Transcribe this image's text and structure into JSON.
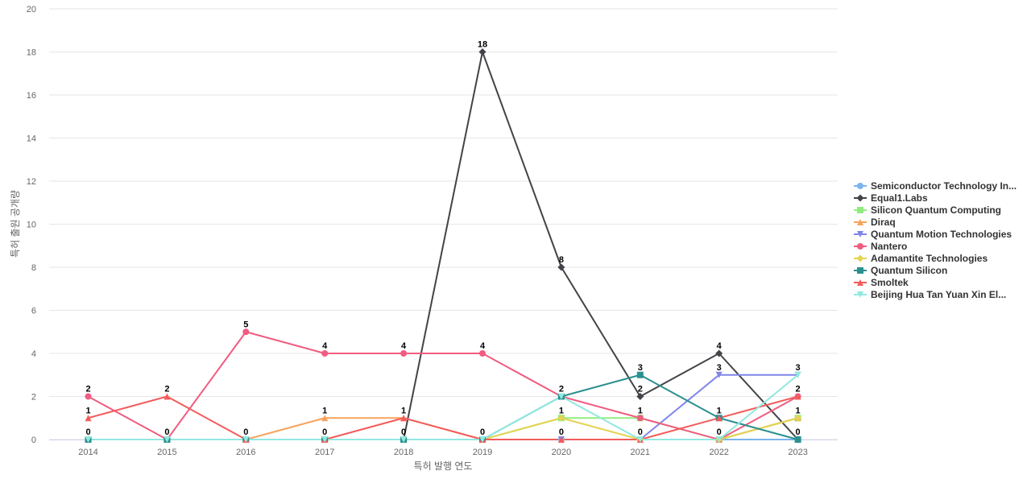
{
  "chart_data": {
    "type": "line",
    "title": "",
    "xlabel": "특허 발행 연도",
    "ylabel": "특허 출원 공개량",
    "categories": [
      "2014",
      "2015",
      "2016",
      "2017",
      "2018",
      "2019",
      "2020",
      "2021",
      "2022",
      "2023"
    ],
    "ylim": [
      0,
      20
    ],
    "yticks": [
      0,
      2,
      4,
      6,
      8,
      10,
      12,
      14,
      16,
      18,
      20
    ],
    "grid": true,
    "legend_position": "right",
    "series": [
      {
        "name": "Semiconductor Technology In...",
        "color": "#7cb5ec",
        "marker": "circle",
        "values": [
          0,
          0,
          0,
          0,
          0,
          0,
          0,
          0,
          0,
          0
        ]
      },
      {
        "name": "Equal1.Labs",
        "color": "#434348",
        "marker": "diamond",
        "values": [
          0,
          0,
          0,
          0,
          0,
          18,
          8,
          2,
          4,
          0
        ]
      },
      {
        "name": "Silicon Quantum Computing",
        "color": "#90ed7d",
        "marker": "square",
        "values": [
          0,
          0,
          0,
          0,
          0,
          0,
          1,
          1,
          0,
          1
        ]
      },
      {
        "name": "Diraq",
        "color": "#f7a35c",
        "marker": "triangle",
        "values": [
          0,
          0,
          0,
          1,
          1,
          0,
          0,
          0,
          0,
          1
        ]
      },
      {
        "name": "Quantum Motion Technologies",
        "color": "#8085e9",
        "marker": "triangle-down",
        "values": [
          0,
          0,
          0,
          0,
          0,
          0,
          0,
          0,
          3,
          3
        ]
      },
      {
        "name": "Nantero",
        "color": "#f15c80",
        "marker": "circle",
        "values": [
          2,
          0,
          5,
          4,
          4,
          4,
          2,
          1,
          0,
          2
        ]
      },
      {
        "name": "Adamantite Technologies",
        "color": "#e4d354",
        "marker": "diamond",
        "values": [
          0,
          0,
          0,
          0,
          0,
          0,
          1,
          0,
          0,
          1
        ]
      },
      {
        "name": "Quantum Silicon",
        "color": "#2b908f",
        "marker": "square",
        "values": [
          0,
          0,
          0,
          0,
          0,
          0,
          2,
          3,
          1,
          0
        ]
      },
      {
        "name": "Smoltek",
        "color": "#f45b5b",
        "marker": "triangle",
        "values": [
          1,
          2,
          0,
          0,
          1,
          0,
          0,
          0,
          1,
          2
        ]
      },
      {
        "name": "Beijing Hua Tan Yuan Xin El...",
        "color": "#91e8e1",
        "marker": "triangle-down",
        "values": [
          0,
          0,
          0,
          0,
          0,
          0,
          2,
          0,
          0,
          3
        ]
      }
    ],
    "data_labels": [
      {
        "category": "2014",
        "value": 2,
        "text": "2"
      },
      {
        "category": "2014",
        "value": 1,
        "text": "1"
      },
      {
        "category": "2014",
        "value": 0,
        "text": "0"
      },
      {
        "category": "2015",
        "value": 2,
        "text": "2"
      },
      {
        "category": "2015",
        "value": 0,
        "text": "0"
      },
      {
        "category": "2016",
        "value": 5,
        "text": "5"
      },
      {
        "category": "2016",
        "value": 0,
        "text": "0"
      },
      {
        "category": "2017",
        "value": 4,
        "text": "4"
      },
      {
        "category": "2017",
        "value": 1,
        "text": "1"
      },
      {
        "category": "2017",
        "value": 0,
        "text": "0"
      },
      {
        "category": "2018",
        "value": 4,
        "text": "4"
      },
      {
        "category": "2018",
        "value": 1,
        "text": "1"
      },
      {
        "category": "2018",
        "value": 0,
        "text": "0"
      },
      {
        "category": "2019",
        "value": 18,
        "text": "18"
      },
      {
        "category": "2019",
        "value": 4,
        "text": "4"
      },
      {
        "category": "2019",
        "value": 0,
        "text": "0"
      },
      {
        "category": "2020",
        "value": 8,
        "text": "8"
      },
      {
        "category": "2020",
        "value": 2,
        "text": "2"
      },
      {
        "category": "2020",
        "value": 1,
        "text": "1"
      },
      {
        "category": "2020",
        "value": 0,
        "text": "0"
      },
      {
        "category": "2021",
        "value": 3,
        "text": "3"
      },
      {
        "category": "2021",
        "value": 2,
        "text": "2"
      },
      {
        "category": "2021",
        "value": 1,
        "text": "1"
      },
      {
        "category": "2021",
        "value": 0,
        "text": "0"
      },
      {
        "category": "2022",
        "value": 4,
        "text": "4"
      },
      {
        "category": "2022",
        "value": 3,
        "text": "3"
      },
      {
        "category": "2022",
        "value": 1,
        "text": "1"
      },
      {
        "category": "2022",
        "value": 0,
        "text": "0"
      },
      {
        "category": "2023",
        "value": 3,
        "text": "3"
      },
      {
        "category": "2023",
        "value": 2,
        "text": "2"
      },
      {
        "category": "2023",
        "value": 1,
        "text": "1"
      },
      {
        "category": "2023",
        "value": 0,
        "text": "0"
      }
    ]
  }
}
